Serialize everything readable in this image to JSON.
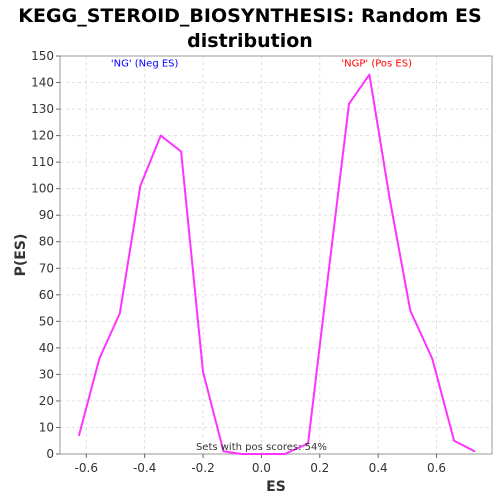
{
  "chart_data": {
    "type": "line",
    "title": "KEGG_STEROID_BIOSYNTHESIS: Random ES distribution",
    "xlabel": "ES",
    "ylabel": "P(ES)",
    "xlim": [
      -0.69,
      0.79
    ],
    "ylim": [
      0,
      150
    ],
    "xticks": [
      -0.6,
      -0.4,
      -0.2,
      0.0,
      0.2,
      0.4,
      0.6
    ],
    "xtick_labels": [
      "-0.6",
      "-0.4",
      "-0.2",
      "0.0",
      "0.2",
      "0.4",
      "0.6"
    ],
    "yticks": [
      0,
      10,
      20,
      30,
      40,
      50,
      60,
      70,
      80,
      90,
      100,
      110,
      120,
      130,
      140,
      150
    ],
    "grid": true,
    "series": [
      {
        "color": "#ff33ff",
        "points": [
          [
            -0.625,
            7
          ],
          [
            -0.555,
            36
          ],
          [
            -0.485,
            53
          ],
          [
            -0.415,
            101
          ],
          [
            -0.345,
            120
          ],
          [
            -0.275,
            114
          ],
          [
            -0.2,
            31
          ],
          [
            -0.13,
            1
          ],
          [
            -0.07,
            0
          ],
          [
            0.0,
            0
          ],
          [
            0.08,
            0
          ],
          [
            0.16,
            4
          ],
          [
            0.225,
            64
          ],
          [
            0.3,
            132
          ],
          [
            0.37,
            143
          ],
          [
            0.44,
            96
          ],
          [
            0.51,
            54
          ],
          [
            0.585,
            36
          ],
          [
            0.66,
            5
          ],
          [
            0.73,
            1
          ]
        ]
      }
    ],
    "annotations": [
      {
        "text": "'NG' (Neg ES)",
        "x": -0.4,
        "y": 146,
        "color": "#0000ff"
      },
      {
        "text": "'NGP' (Pos ES)",
        "x": 0.395,
        "y": 146,
        "color": "#ff0000"
      },
      {
        "text": "Sets with pos scores: 54%",
        "x": 0.0,
        "y": 1.5,
        "color": "#333333"
      }
    ]
  }
}
